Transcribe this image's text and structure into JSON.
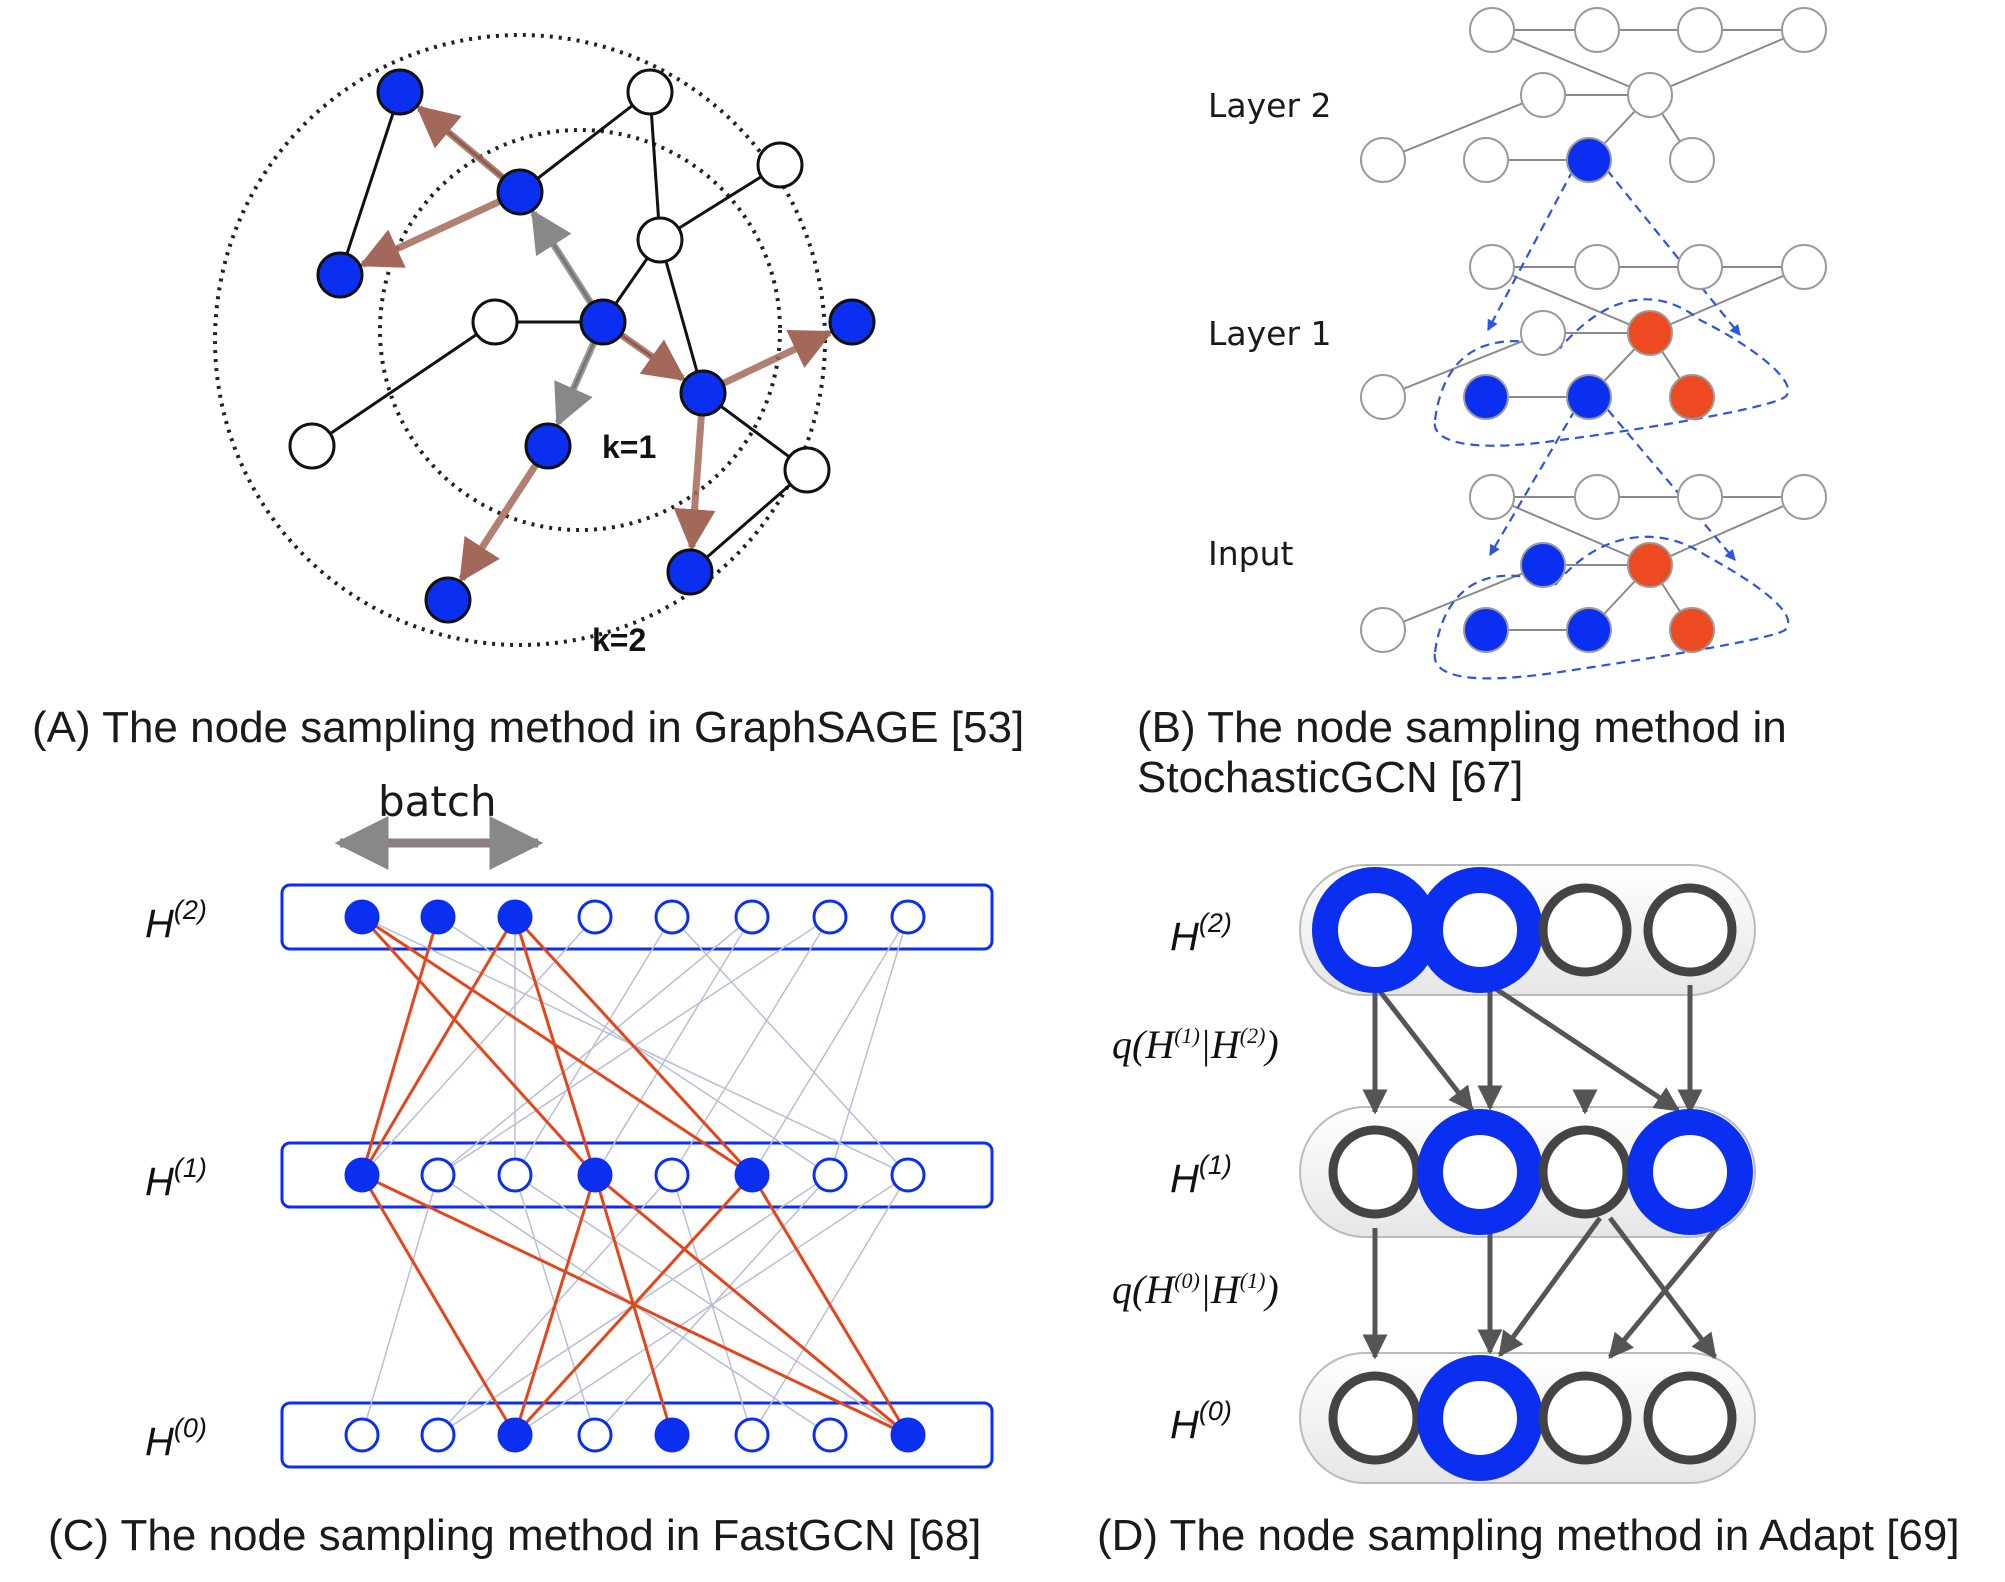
{
  "panel_a": {
    "caption": "(A) The node sampling method in GraphSAGE [53]",
    "k1_label": "k=1",
    "k2_label": "k=2",
    "colors": {
      "sampled": "#0a2ff0",
      "unsampled": "#ffffff",
      "arrow": "#a4685a"
    }
  },
  "panel_b": {
    "caption_line1": "(B) The node sampling method in",
    "caption_line2": "StochasticGCN [67]",
    "layer_labels": [
      "Layer 2",
      "Layer 1",
      "Input"
    ],
    "colors": {
      "sampled": "#0a2ff0",
      "control": "#ee4a22",
      "dashed": "#2d55e0",
      "edge": "#8a8a8a"
    }
  },
  "panel_c": {
    "caption": "(C) The node sampling method in FastGCN [68]",
    "batch_label": "batch",
    "layers": [
      {
        "base": "H",
        "sup": "(2)",
        "filled": [
          true,
          true,
          true,
          false,
          false,
          false,
          false,
          false
        ]
      },
      {
        "base": "H",
        "sup": "(1)",
        "filled": [
          true,
          false,
          false,
          true,
          false,
          true,
          false,
          false
        ]
      },
      {
        "base": "H",
        "sup": "(0)",
        "filled": [
          false,
          false,
          true,
          false,
          true,
          false,
          false,
          true
        ]
      }
    ],
    "colors": {
      "node": "#0a2ff0",
      "sampled_edge": "#e4461c",
      "other_edge": "#b8bfd6"
    }
  },
  "panel_d": {
    "caption": "(D) The node sampling method in Adapt [69]",
    "layers": [
      {
        "base": "H",
        "sup": "(2)",
        "sampled": [
          true,
          true,
          false,
          false
        ]
      },
      {
        "base": "H",
        "sup": "(1)",
        "sampled": [
          false,
          true,
          false,
          true
        ]
      },
      {
        "base": "H",
        "sup": "(0)",
        "sampled": [
          false,
          true,
          false,
          false
        ]
      }
    ],
    "q_labels": [
      {
        "pre": "q(H",
        "sup1": "(1)",
        "mid": "|H",
        "sup2": "(2)",
        "post": ")"
      },
      {
        "pre": "q(H",
        "sup1": "(0)",
        "mid": "|H",
        "sup2": "(1)",
        "post": ")"
      }
    ],
    "colors": {
      "sampled": "#0a2ff0",
      "unsampled": "#444444",
      "arrow": "#555555"
    }
  }
}
